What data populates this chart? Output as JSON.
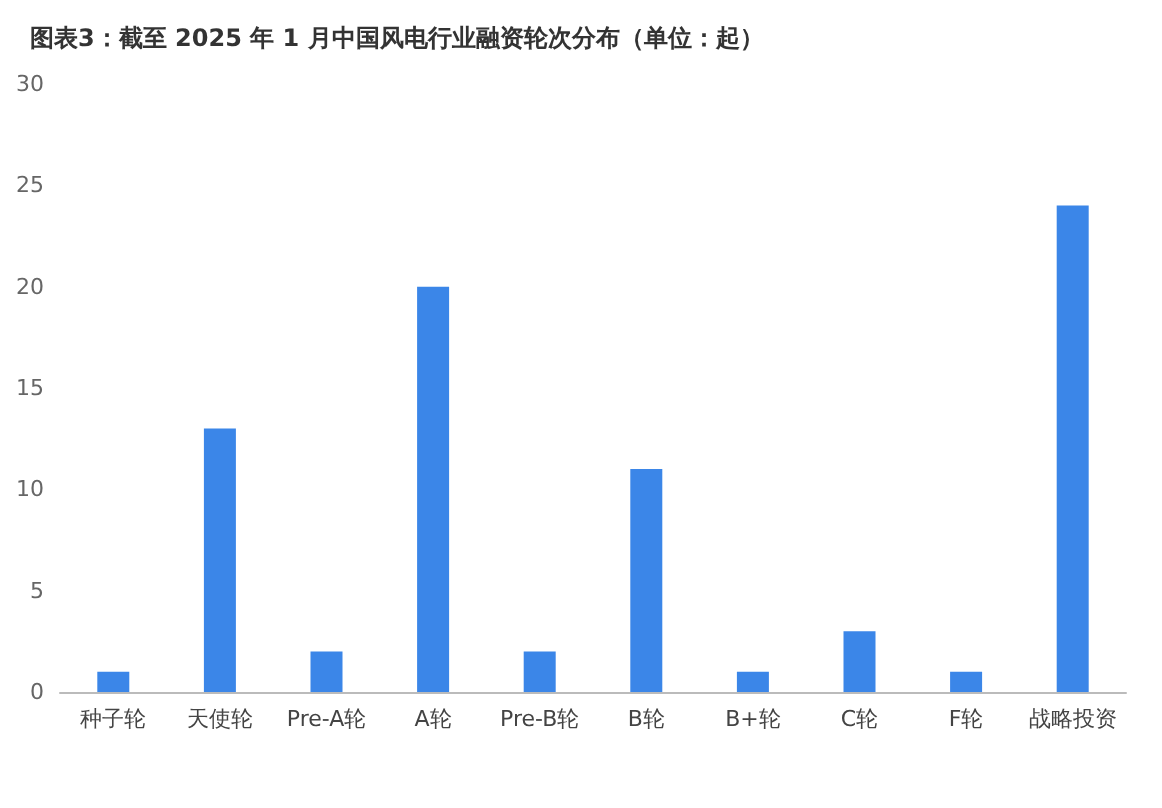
{
  "chart_data": {
    "type": "bar",
    "title": "图表3：截至 2025 年 1 月中国风电行业融资轮次分布（单位：起）",
    "categories": [
      "种子轮",
      "天使轮",
      "Pre-A轮",
      "A轮",
      "Pre-B轮",
      "B轮",
      "B+轮",
      "C轮",
      "F轮",
      "战略投资"
    ],
    "values": [
      1,
      13,
      2,
      20,
      2,
      11,
      1,
      3,
      1,
      24
    ],
    "color": "#3b86e8",
    "ylim": [
      0,
      30
    ],
    "yticks": [
      0,
      5,
      10,
      15,
      20,
      25,
      30
    ],
    "grid": false
  }
}
